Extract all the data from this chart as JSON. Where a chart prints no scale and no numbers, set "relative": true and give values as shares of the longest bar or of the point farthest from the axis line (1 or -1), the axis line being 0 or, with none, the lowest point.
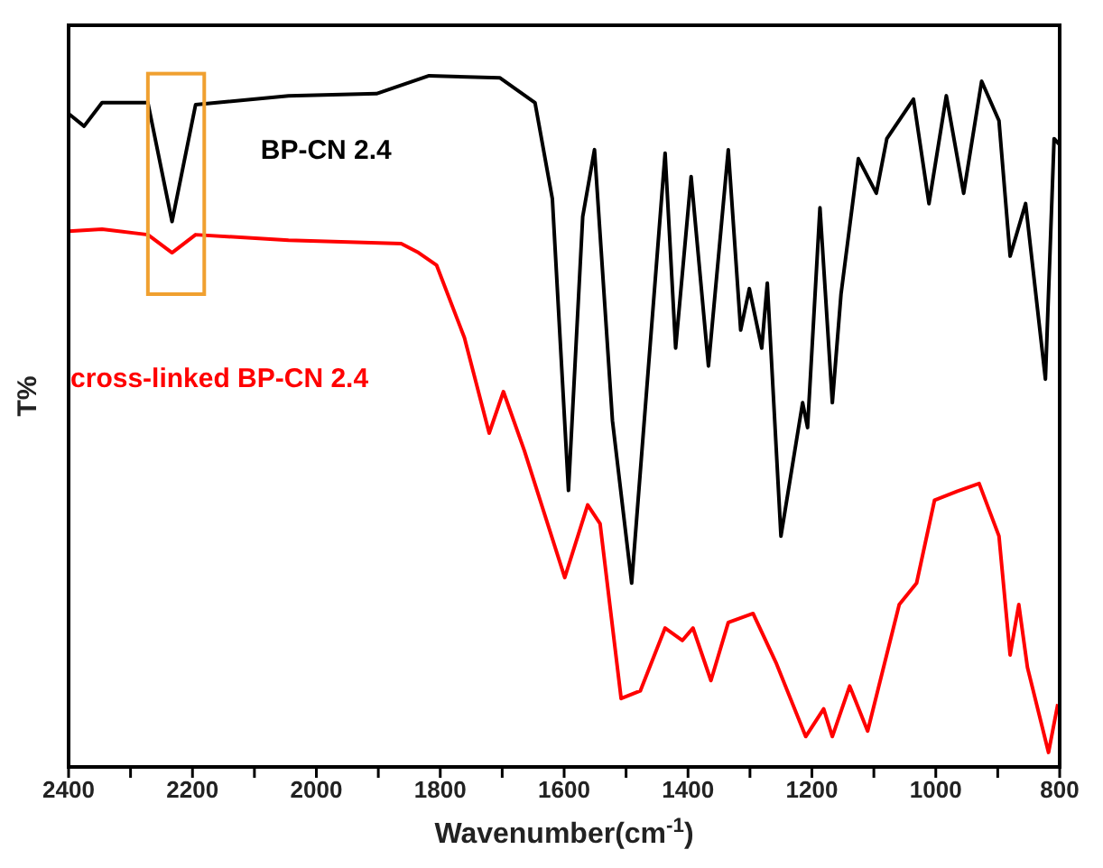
{
  "chart_data": {
    "type": "line",
    "relative": true,
    "xlabel": "Wavenumber(cm$^{-1}$)",
    "ylabel": "T%",
    "xlim": [
      2400,
      800
    ],
    "xticks": [
      2400,
      {
        "value": 2300,
        "label": null
      },
      2200,
      {
        "value": 2100,
        "label": null
      },
      2000,
      {
        "value": 1900,
        "label": null
      },
      1800,
      {
        "value": 1700,
        "label": null
      },
      1600,
      {
        "value": 1500,
        "label": null
      },
      1400,
      {
        "value": 1300,
        "label": null
      },
      1200,
      {
        "value": 1100,
        "label": null
      },
      1000,
      {
        "value": 900,
        "label": null
      },
      800
    ],
    "legend": false,
    "grid": false,
    "marker": "none",
    "line_style": "solid",
    "series": [
      {
        "name": "BP-CN 2.4",
        "color": "#000000",
        "x": [
          2400,
          2375,
          2346,
          2272,
          2233,
          2195,
          2045,
          1903,
          1818,
          1704,
          1647,
          1619,
          1593,
          1570,
          1551,
          1522,
          1491,
          1437,
          1420,
          1395,
          1367,
          1335,
          1315,
          1301,
          1281,
          1272,
          1250,
          1215,
          1207,
          1187,
          1167,
          1153,
          1125,
          1096,
          1079,
          1036,
          1011,
          983,
          955,
          926,
          898,
          880,
          855,
          823,
          809,
          800
        ],
        "values": [
          0.945,
          0.927,
          0.961,
          0.961,
          0.789,
          0.958,
          0.971,
          0.974,
          1,
          0.997,
          0.961,
          0.822,
          0.4,
          0.796,
          0.893,
          0.501,
          0.266,
          0.888,
          0.606,
          0.854,
          0.58,
          0.893,
          0.632,
          0.692,
          0.606,
          0.7,
          0.334,
          0.527,
          0.491,
          0.809,
          0.527,
          0.684,
          0.88,
          0.83,
          0.909,
          0.966,
          0.815,
          0.971,
          0.83,
          0.992,
          0.935,
          0.739,
          0.815,
          0.561,
          0.909,
          0.9
        ]
      },
      {
        "name": "cross-linked BP-CN 2.4",
        "color": "#ff0000",
        "x": [
          2400,
          2346,
          2272,
          2233,
          2195,
          2045,
          1863,
          1835,
          1806,
          1761,
          1721,
          1698,
          1664,
          1599,
          1562,
          1542,
          1508,
          1477,
          1437,
          1409,
          1392,
          1363,
          1335,
          1295,
          1258,
          1210,
          1181,
          1167,
          1139,
          1110,
          1059,
          1031,
          1002,
          965,
          930,
          898,
          880,
          866,
          852,
          818,
          803
        ],
        "values": [
          0.775,
          0.778,
          0.77,
          0.744,
          0.77,
          0.762,
          0.757,
          0.744,
          0.726,
          0.621,
          0.483,
          0.543,
          0.457,
          0.274,
          0.379,
          0.352,
          0.099,
          0.11,
          0.201,
          0.183,
          0.201,
          0.125,
          0.209,
          0.222,
          0.151,
          0.044,
          0.084,
          0.044,
          0.117,
          0.052,
          0.235,
          0.266,
          0.386,
          0.399,
          0.41,
          0.334,
          0.162,
          0.235,
          0.144,
          0.021,
          0.091
        ]
      }
    ]
  }
}
